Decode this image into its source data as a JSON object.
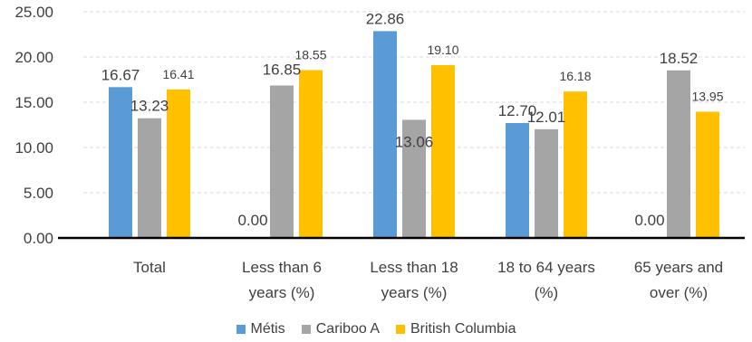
{
  "chart_data": {
    "type": "bar",
    "categories": [
      [
        "Total"
      ],
      [
        "Less than 6",
        "years (%)"
      ],
      [
        "Less than 18",
        "years (%)"
      ],
      [
        "18 to 64 years",
        "(%)"
      ],
      [
        "65 years and",
        "over (%)"
      ]
    ],
    "series": [
      {
        "name": "Métis",
        "color": "#5B9BD5",
        "values": [
          16.67,
          0.0,
          22.86,
          12.7,
          0.0
        ],
        "labels": [
          "16.67",
          "0.00",
          "22.86",
          "12.70",
          "0.00"
        ]
      },
      {
        "name": "Cariboo A",
        "color": "#A5A5A5",
        "values": [
          13.23,
          16.85,
          13.06,
          12.01,
          18.52
        ],
        "labels": [
          "13.23",
          "16.85",
          "13.06",
          "12.01",
          "18.52"
        ]
      },
      {
        "name": "British Columbia",
        "color": "#FFC000",
        "values": [
          16.41,
          18.55,
          19.1,
          16.18,
          13.95
        ],
        "labels": [
          "16.41",
          "18.55",
          "19.10",
          "16.18",
          "13.95"
        ]
      }
    ],
    "yticks": [
      "0.00",
      "5.00",
      "10.00",
      "15.00",
      "20.00",
      "25.00"
    ],
    "ylim": [
      0,
      25
    ],
    "grid": true,
    "legend_position": "bottom"
  }
}
